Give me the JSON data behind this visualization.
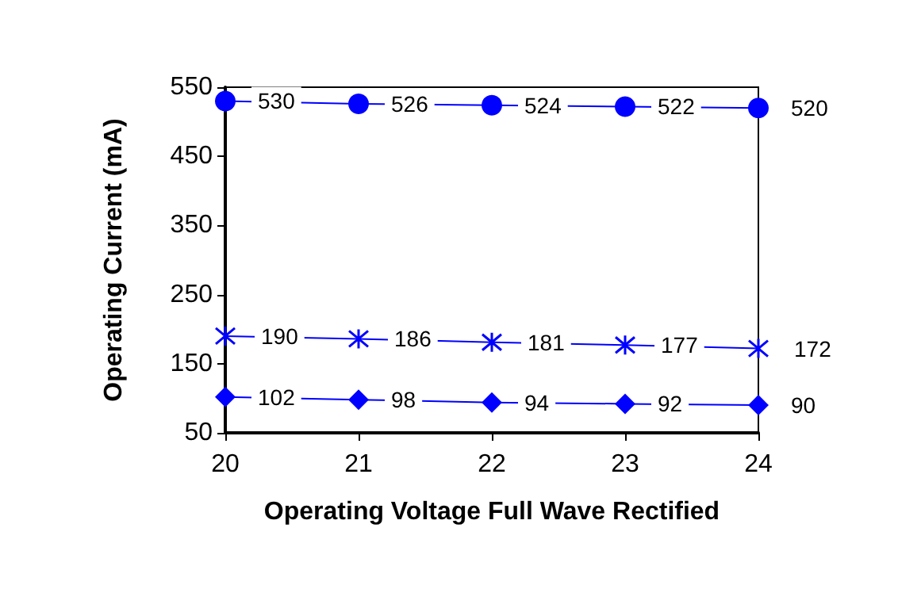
{
  "chart_data": {
    "type": "line",
    "xlabel": "Operating Voltage Full Wave Rectified",
    "ylabel": "Operating Current (mA)",
    "x": [
      20,
      21,
      22,
      23,
      24
    ],
    "series": [
      {
        "color": "#0000ff",
        "marker": "circle",
        "values": [
          530,
          526,
          524,
          522,
          520
        ]
      },
      {
        "color": "#0000ff",
        "marker": "cross",
        "values": [
          190,
          186,
          181,
          177,
          172
        ]
      },
      {
        "color": "#0000ff",
        "marker": "diamond",
        "values": [
          102,
          98,
          94,
          92,
          90
        ]
      }
    ],
    "xlim": [
      20,
      24
    ],
    "xticks": [
      20,
      21,
      22,
      23,
      24
    ],
    "ylim": [
      50,
      550
    ],
    "yticks": [
      50,
      150,
      250,
      350,
      450,
      550
    ],
    "grid": false,
    "data_labels": true,
    "line_style": "solid"
  }
}
